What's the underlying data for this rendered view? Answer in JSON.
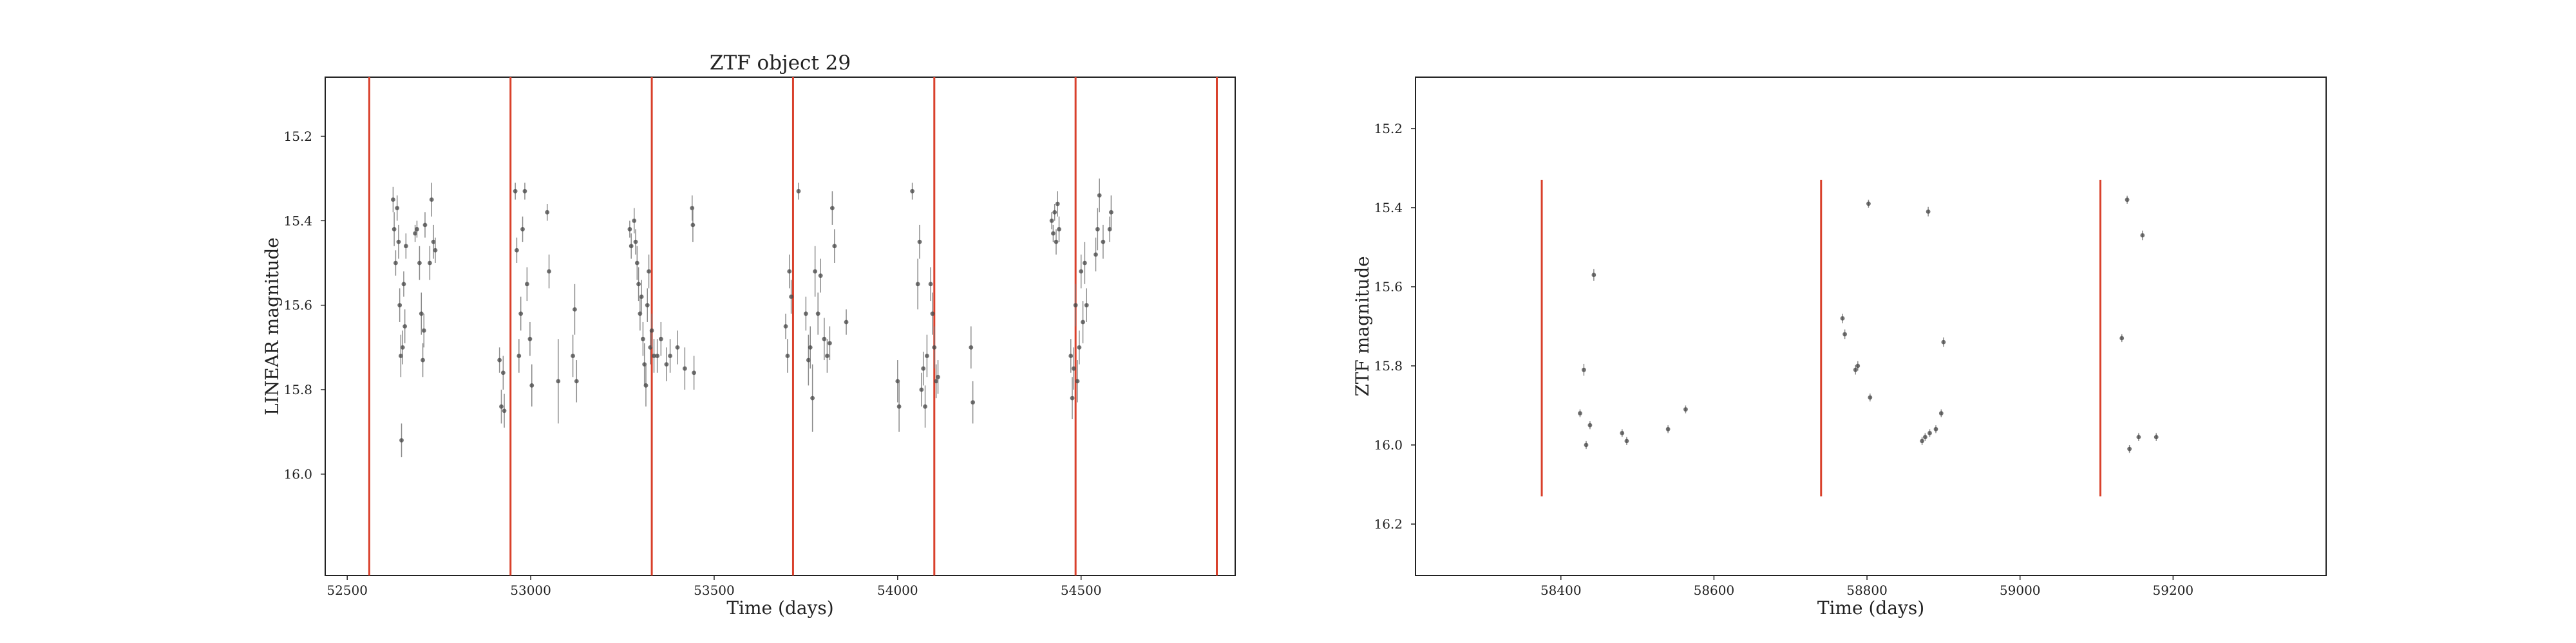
{
  "chart_data": [
    {
      "type": "scatter",
      "title": "ZTF object 29",
      "xlabel": "Time (days)",
      "ylabel": "LINEAR magnitude",
      "xlim": [
        52440,
        54920
      ],
      "ylim": [
        16.24,
        15.06
      ],
      "y_inverted": true,
      "grid": false,
      "x_ticks": [
        52500,
        53000,
        53500,
        54000,
        54500
      ],
      "x_tick_labels": [
        "52500",
        "53000",
        "53500",
        "54000",
        "54500"
      ],
      "y_ticks": [
        15.2,
        15.4,
        15.6,
        15.8,
        16.0
      ],
      "y_tick_labels": [
        "15.2",
        "15.4",
        "15.6",
        "15.8",
        "16.0"
      ],
      "vlines": {
        "color": "#d9402b",
        "x": [
          52560,
          52945,
          53330,
          53715,
          54100,
          54485,
          54870
        ]
      },
      "series": [
        {
          "name": "observations",
          "color": "#444444",
          "points": [
            {
              "x": 52625,
              "y": 15.35,
              "err": 0.03
            },
            {
              "x": 52628,
              "y": 15.42,
              "err": 0.04
            },
            {
              "x": 52632,
              "y": 15.5,
              "err": 0.03
            },
            {
              "x": 52636,
              "y": 15.37,
              "err": 0.03
            },
            {
              "x": 52640,
              "y": 15.45,
              "err": 0.04
            },
            {
              "x": 52643,
              "y": 15.6,
              "err": 0.04
            },
            {
              "x": 52646,
              "y": 15.72,
              "err": 0.05
            },
            {
              "x": 52648,
              "y": 15.92,
              "err": 0.04
            },
            {
              "x": 52651,
              "y": 15.7,
              "err": 0.04
            },
            {
              "x": 52654,
              "y": 15.55,
              "err": 0.03
            },
            {
              "x": 52657,
              "y": 15.65,
              "err": 0.04
            },
            {
              "x": 52660,
              "y": 15.46,
              "err": 0.03
            },
            {
              "x": 52685,
              "y": 15.43,
              "err": 0.02
            },
            {
              "x": 52690,
              "y": 15.42,
              "err": 0.02
            },
            {
              "x": 52697,
              "y": 15.5,
              "err": 0.04
            },
            {
              "x": 52702,
              "y": 15.62,
              "err": 0.05
            },
            {
              "x": 52706,
              "y": 15.73,
              "err": 0.04
            },
            {
              "x": 52709,
              "y": 15.66,
              "err": 0.04
            },
            {
              "x": 52712,
              "y": 15.41,
              "err": 0.03
            },
            {
              "x": 52725,
              "y": 15.5,
              "err": 0.04
            },
            {
              "x": 52730,
              "y": 15.35,
              "err": 0.04
            },
            {
              "x": 52735,
              "y": 15.45,
              "err": 0.04
            },
            {
              "x": 52740,
              "y": 15.47,
              "err": 0.03
            },
            {
              "x": 52915,
              "y": 15.73,
              "err": 0.03
            },
            {
              "x": 52920,
              "y": 15.84,
              "err": 0.04
            },
            {
              "x": 52925,
              "y": 15.76,
              "err": 0.04
            },
            {
              "x": 52928,
              "y": 15.85,
              "err": 0.04
            },
            {
              "x": 52958,
              "y": 15.33,
              "err": 0.02
            },
            {
              "x": 52962,
              "y": 15.47,
              "err": 0.03
            },
            {
              "x": 52968,
              "y": 15.72,
              "err": 0.04
            },
            {
              "x": 52973,
              "y": 15.62,
              "err": 0.04
            },
            {
              "x": 52978,
              "y": 15.42,
              "err": 0.03
            },
            {
              "x": 52984,
              "y": 15.33,
              "err": 0.02
            },
            {
              "x": 52990,
              "y": 15.55,
              "err": 0.04
            },
            {
              "x": 52998,
              "y": 15.68,
              "err": 0.04
            },
            {
              "x": 53003,
              "y": 15.79,
              "err": 0.05
            },
            {
              "x": 53045,
              "y": 15.38,
              "err": 0.02
            },
            {
              "x": 53050,
              "y": 15.52,
              "err": 0.04
            },
            {
              "x": 53075,
              "y": 15.78,
              "err": 0.1
            },
            {
              "x": 53115,
              "y": 15.72,
              "err": 0.05
            },
            {
              "x": 53120,
              "y": 15.61,
              "err": 0.06
            },
            {
              "x": 53125,
              "y": 15.78,
              "err": 0.05
            },
            {
              "x": 53270,
              "y": 15.42,
              "err": 0.02
            },
            {
              "x": 53274,
              "y": 15.46,
              "err": 0.03
            },
            {
              "x": 53282,
              "y": 15.4,
              "err": 0.03
            },
            {
              "x": 53286,
              "y": 15.45,
              "err": 0.03
            },
            {
              "x": 53290,
              "y": 15.5,
              "err": 0.04
            },
            {
              "x": 53294,
              "y": 15.55,
              "err": 0.04
            },
            {
              "x": 53298,
              "y": 15.62,
              "err": 0.04
            },
            {
              "x": 53302,
              "y": 15.58,
              "err": 0.04
            },
            {
              "x": 53306,
              "y": 15.68,
              "err": 0.04
            },
            {
              "x": 53310,
              "y": 15.74,
              "err": 0.05
            },
            {
              "x": 53314,
              "y": 15.79,
              "err": 0.05
            },
            {
              "x": 53318,
              "y": 15.6,
              "err": 0.04
            },
            {
              "x": 53322,
              "y": 15.52,
              "err": 0.04
            },
            {
              "x": 53326,
              "y": 15.7,
              "err": 0.04
            },
            {
              "x": 53330,
              "y": 15.66,
              "err": 0.04
            },
            {
              "x": 53336,
              "y": 15.72,
              "err": 0.04
            },
            {
              "x": 53345,
              "y": 15.72,
              "err": 0.04
            },
            {
              "x": 53355,
              "y": 15.68,
              "err": 0.04
            },
            {
              "x": 53370,
              "y": 15.74,
              "err": 0.04
            },
            {
              "x": 53380,
              "y": 15.72,
              "err": 0.04
            },
            {
              "x": 53400,
              "y": 15.7,
              "err": 0.04
            },
            {
              "x": 53420,
              "y": 15.75,
              "err": 0.05
            },
            {
              "x": 53440,
              "y": 15.37,
              "err": 0.03
            },
            {
              "x": 53442,
              "y": 15.41,
              "err": 0.04
            },
            {
              "x": 53445,
              "y": 15.76,
              "err": 0.04
            },
            {
              "x": 53695,
              "y": 15.65,
              "err": 0.03
            },
            {
              "x": 53700,
              "y": 15.72,
              "err": 0.04
            },
            {
              "x": 53705,
              "y": 15.52,
              "err": 0.04
            },
            {
              "x": 53710,
              "y": 15.58,
              "err": 0.04
            },
            {
              "x": 53730,
              "y": 15.33,
              "err": 0.02
            },
            {
              "x": 53750,
              "y": 15.62,
              "err": 0.04
            },
            {
              "x": 53757,
              "y": 15.73,
              "err": 0.06
            },
            {
              "x": 53762,
              "y": 15.7,
              "err": 0.05
            },
            {
              "x": 53768,
              "y": 15.82,
              "err": 0.08
            },
            {
              "x": 53775,
              "y": 15.52,
              "err": 0.06
            },
            {
              "x": 53783,
              "y": 15.62,
              "err": 0.05
            },
            {
              "x": 53790,
              "y": 15.53,
              "err": 0.04
            },
            {
              "x": 53800,
              "y": 15.68,
              "err": 0.05
            },
            {
              "x": 53808,
              "y": 15.72,
              "err": 0.04
            },
            {
              "x": 53815,
              "y": 15.69,
              "err": 0.04
            },
            {
              "x": 53822,
              "y": 15.37,
              "err": 0.04
            },
            {
              "x": 53828,
              "y": 15.46,
              "err": 0.04
            },
            {
              "x": 53860,
              "y": 15.64,
              "err": 0.03
            },
            {
              "x": 54000,
              "y": 15.78,
              "err": 0.05
            },
            {
              "x": 54004,
              "y": 15.84,
              "err": 0.06
            },
            {
              "x": 54040,
              "y": 15.33,
              "err": 0.02
            },
            {
              "x": 54055,
              "y": 15.55,
              "err": 0.06
            },
            {
              "x": 54060,
              "y": 15.45,
              "err": 0.04
            },
            {
              "x": 54065,
              "y": 15.8,
              "err": 0.04
            },
            {
              "x": 54070,
              "y": 15.75,
              "err": 0.04
            },
            {
              "x": 54075,
              "y": 15.84,
              "err": 0.05
            },
            {
              "x": 54080,
              "y": 15.72,
              "err": 0.05
            },
            {
              "x": 54090,
              "y": 15.55,
              "err": 0.04
            },
            {
              "x": 54095,
              "y": 15.62,
              "err": 0.05
            },
            {
              "x": 54100,
              "y": 15.7,
              "err": 0.05
            },
            {
              "x": 54105,
              "y": 15.78,
              "err": 0.04
            },
            {
              "x": 54110,
              "y": 15.77,
              "err": 0.04
            },
            {
              "x": 54200,
              "y": 15.7,
              "err": 0.05
            },
            {
              "x": 54205,
              "y": 15.83,
              "err": 0.05
            },
            {
              "x": 54420,
              "y": 15.4,
              "err": 0.02
            },
            {
              "x": 54424,
              "y": 15.43,
              "err": 0.02
            },
            {
              "x": 54428,
              "y": 15.38,
              "err": 0.02
            },
            {
              "x": 54432,
              "y": 15.45,
              "err": 0.03
            },
            {
              "x": 54436,
              "y": 15.36,
              "err": 0.03
            },
            {
              "x": 54440,
              "y": 15.42,
              "err": 0.03
            },
            {
              "x": 54472,
              "y": 15.72,
              "err": 0.04
            },
            {
              "x": 54476,
              "y": 15.82,
              "err": 0.05
            },
            {
              "x": 54480,
              "y": 15.75,
              "err": 0.05
            },
            {
              "x": 54485,
              "y": 15.6,
              "err": 0.05
            },
            {
              "x": 54490,
              "y": 15.78,
              "err": 0.05
            },
            {
              "x": 54495,
              "y": 15.7,
              "err": 0.04
            },
            {
              "x": 54500,
              "y": 15.52,
              "err": 0.04
            },
            {
              "x": 54505,
              "y": 15.64,
              "err": 0.05
            },
            {
              "x": 54510,
              "y": 15.5,
              "err": 0.05
            },
            {
              "x": 54515,
              "y": 15.6,
              "err": 0.04
            },
            {
              "x": 54540,
              "y": 15.48,
              "err": 0.04
            },
            {
              "x": 54545,
              "y": 15.42,
              "err": 0.05
            },
            {
              "x": 54550,
              "y": 15.34,
              "err": 0.04
            },
            {
              "x": 54560,
              "y": 15.45,
              "err": 0.04
            },
            {
              "x": 54578,
              "y": 15.42,
              "err": 0.03
            },
            {
              "x": 54582,
              "y": 15.38,
              "err": 0.04
            }
          ]
        }
      ]
    },
    {
      "type": "scatter",
      "title": "",
      "xlabel": "Time (days)",
      "ylabel": "ZTF magnitude",
      "xlim": [
        58210,
        59400
      ],
      "ylim": [
        16.33,
        15.07
      ],
      "y_inverted": true,
      "grid": false,
      "x_ticks": [
        58400,
        58600,
        58800,
        59000,
        59200
      ],
      "x_tick_labels": [
        "58400",
        "58600",
        "58800",
        "59000",
        "59200"
      ],
      "y_ticks": [
        15.2,
        15.4,
        15.6,
        15.8,
        16.0,
        16.2
      ],
      "y_tick_labels": [
        "15.2",
        "15.4",
        "15.6",
        "15.8",
        "16.0",
        "16.2"
      ],
      "vlines": {
        "color": "#d9402b",
        "x": [
          58375,
          58740,
          59105
        ],
        "y_range": [
          15.33,
          16.13
        ]
      },
      "series": [
        {
          "name": "observations",
          "color": "#444444",
          "points": [
            {
              "x": 58425,
              "y": 15.92,
              "err": 0.01
            },
            {
              "x": 58430,
              "y": 15.81,
              "err": 0.015
            },
            {
              "x": 58433,
              "y": 16.0,
              "err": 0.01
            },
            {
              "x": 58438,
              "y": 15.95,
              "err": 0.01
            },
            {
              "x": 58443,
              "y": 15.57,
              "err": 0.015
            },
            {
              "x": 58480,
              "y": 15.97,
              "err": 0.01
            },
            {
              "x": 58486,
              "y": 15.99,
              "err": 0.01
            },
            {
              "x": 58540,
              "y": 15.96,
              "err": 0.01
            },
            {
              "x": 58563,
              "y": 15.91,
              "err": 0.01
            },
            {
              "x": 58768,
              "y": 15.68,
              "err": 0.012
            },
            {
              "x": 58771,
              "y": 15.72,
              "err": 0.012
            },
            {
              "x": 58785,
              "y": 15.81,
              "err": 0.012
            },
            {
              "x": 58788,
              "y": 15.8,
              "err": 0.012
            },
            {
              "x": 58802,
              "y": 15.39,
              "err": 0.01
            },
            {
              "x": 58804,
              "y": 15.88,
              "err": 0.01
            },
            {
              "x": 58872,
              "y": 15.99,
              "err": 0.01
            },
            {
              "x": 58876,
              "y": 15.98,
              "err": 0.01
            },
            {
              "x": 58880,
              "y": 15.41,
              "err": 0.012
            },
            {
              "x": 58882,
              "y": 15.97,
              "err": 0.01
            },
            {
              "x": 58890,
              "y": 15.96,
              "err": 0.01
            },
            {
              "x": 58897,
              "y": 15.92,
              "err": 0.01
            },
            {
              "x": 58900,
              "y": 15.74,
              "err": 0.012
            },
            {
              "x": 59133,
              "y": 15.73,
              "err": 0.01
            },
            {
              "x": 59140,
              "y": 15.38,
              "err": 0.01
            },
            {
              "x": 59143,
              "y": 16.01,
              "err": 0.01
            },
            {
              "x": 59155,
              "y": 15.98,
              "err": 0.01
            },
            {
              "x": 59160,
              "y": 15.47,
              "err": 0.012
            },
            {
              "x": 59178,
              "y": 15.98,
              "err": 0.01
            }
          ]
        }
      ]
    }
  ]
}
